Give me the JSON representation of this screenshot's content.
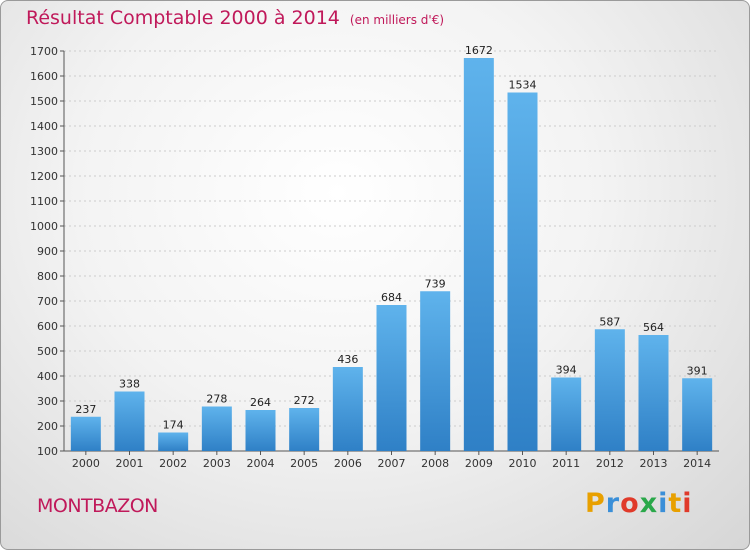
{
  "header": {
    "title": "Résultat Comptable 2000 à 2014",
    "subtitle": "(en milliers d'€)"
  },
  "footer": {
    "place": "MONTBAZON",
    "logo_letters": [
      "P",
      "r",
      "o",
      "x",
      "i",
      "t",
      "i"
    ],
    "logo_colors": [
      "#e8a000",
      "#3a8fd8",
      "#e03a2a",
      "#2aa84a",
      "#3a8fd8",
      "#e8a000",
      "#e03a2a"
    ]
  },
  "colors": {
    "title": "#c0195a",
    "bar_light": "#5fb3ec",
    "bar_dark": "#2f80c6",
    "grid": "#cccccc"
  },
  "chart_data": {
    "type": "bar",
    "title": "Résultat Comptable 2000 à 2014",
    "subtitle": "(en milliers d'€)",
    "xlabel": "",
    "ylabel": "",
    "categories": [
      "2000",
      "2001",
      "2002",
      "2003",
      "2004",
      "2005",
      "2006",
      "2007",
      "2008",
      "2009",
      "2010",
      "2011",
      "2012",
      "2013",
      "2014"
    ],
    "values": [
      237,
      338,
      174,
      278,
      264,
      272,
      436,
      684,
      739,
      1672,
      1534,
      394,
      587,
      564,
      391
    ],
    "value_labels": [
      "237",
      "338",
      "174",
      "278",
      "264",
      "272",
      "436",
      "684",
      "739",
      "1672",
      "1534",
      "394",
      "587",
      "564",
      "391"
    ],
    "ylim": [
      100,
      1700
    ],
    "yticks": [
      100,
      200,
      300,
      400,
      500,
      600,
      700,
      800,
      900,
      1000,
      1100,
      1200,
      1300,
      1400,
      1500,
      1600,
      1700
    ],
    "ytick_labels": [
      "100",
      "200",
      "300",
      "400",
      "500",
      "600",
      "700",
      "800",
      "900",
      "1000",
      "1100",
      "1200",
      "1300",
      "1400",
      "1500",
      "1600",
      "1700"
    ],
    "grid": "horizontal-dotted"
  }
}
